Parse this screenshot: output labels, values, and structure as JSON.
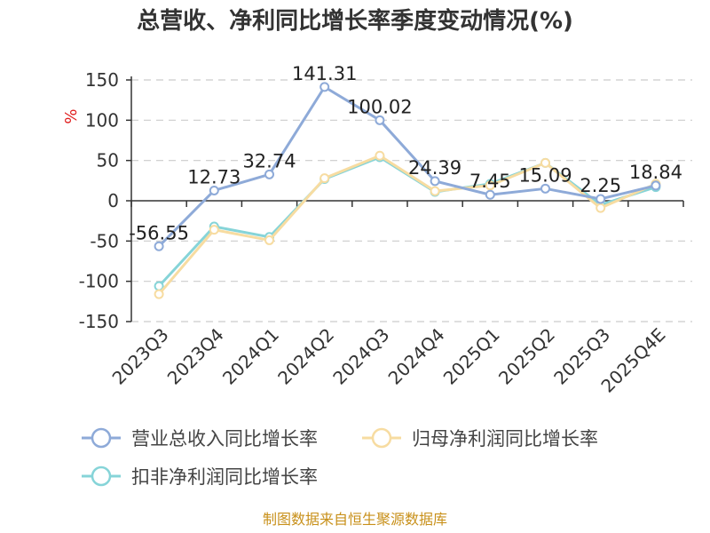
{
  "chart_data": {
    "type": "line",
    "title": "总营收、净利同比增长率季度变动情况(%)",
    "ylabel": "%",
    "xlabel": "",
    "categories": [
      "2023Q3",
      "2023Q4",
      "2024Q1",
      "2024Q2",
      "2024Q3",
      "2024Q4",
      "2025Q1",
      "2025Q2",
      "2025Q3",
      "2025Q4E"
    ],
    "ylim": [
      -150,
      150
    ],
    "yticks": [
      150,
      100,
      50,
      0,
      -50,
      -100,
      -150
    ],
    "grid": true,
    "legend_position": "bottom",
    "series": [
      {
        "name": "营业总收入同比增长率",
        "color": "#8eaad8",
        "values": [
          -56.55,
          12.73,
          32.74,
          141.31,
          100.02,
          24.39,
          7.45,
          15.09,
          2.25,
          18.84
        ],
        "labels": [
          "-56.55",
          "12.73",
          "32.74",
          "141.31",
          "100.02",
          "24.39",
          "7.45",
          "15.09",
          "2.25",
          "18.84"
        ]
      },
      {
        "name": "归母净利润同比增长率",
        "color": "#f7dca1",
        "values": [
          -116,
          -36,
          -49,
          28,
          56,
          12,
          19,
          47,
          -9,
          21
        ]
      },
      {
        "name": "扣非净利润同比增长率",
        "color": "#86d4d8",
        "values": [
          -106,
          -32,
          -45,
          27,
          54,
          11,
          21,
          47,
          -5,
          17
        ]
      }
    ]
  },
  "colors": {
    "unit": "#e02020",
    "source": "#c8901a",
    "grid": "#cccccc",
    "axis": "#333333"
  },
  "source": "制图数据来自恒生聚源数据库"
}
